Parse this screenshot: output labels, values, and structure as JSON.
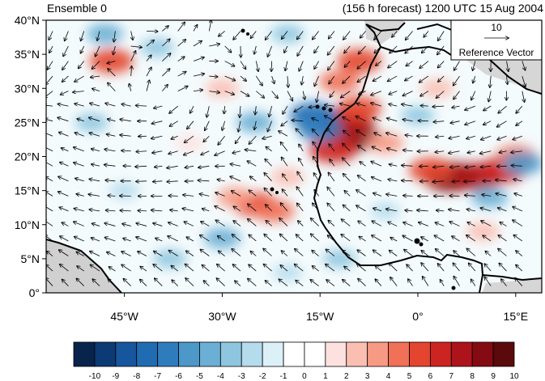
{
  "header": {
    "left_title": "Ensemble 0",
    "right_title": "(156 h forecast) 1200 UTC 15 Aug 2004"
  },
  "axes": {
    "y_ticks": [
      "0°",
      "5°N",
      "10°N",
      "15°N",
      "20°N",
      "25°N",
      "30°N",
      "35°N",
      "40°N"
    ],
    "x_ticks": [
      "45°W",
      "30°W",
      "15°W",
      "0°",
      "15°E"
    ],
    "y_range": [
      0,
      40
    ],
    "x_range": [
      -57,
      19
    ]
  },
  "reference_vector": {
    "value": "10",
    "label": "Reference Vector"
  },
  "colorbar": {
    "labels": [
      "-10",
      "-9",
      "-8",
      "-7",
      "-6",
      "-5",
      "-4",
      "-3",
      "-2",
      "-1",
      "0",
      "1",
      "2",
      "3",
      "4",
      "5",
      "6",
      "7",
      "8",
      "9",
      "10"
    ],
    "colors": [
      "#08234c",
      "#0c3a75",
      "#16569c",
      "#1f6cb2",
      "#2f7cbc",
      "#4b98c9",
      "#6cafd4",
      "#8fc6df",
      "#b5dcec",
      "#dcf0f8",
      "#ffffff",
      "#ffffff",
      "#fde1df",
      "#fbbfb2",
      "#f79a84",
      "#f07058",
      "#e3452f",
      "#cc2420",
      "#ad131a",
      "#850b12",
      "#5a0a0b"
    ]
  },
  "anomalies": [
    {
      "lon": -10,
      "lat": 23,
      "value": 9
    },
    {
      "lon": -11,
      "lat": 25,
      "value": 8
    },
    {
      "lon": -13,
      "lat": 21,
      "value": 7
    },
    {
      "lon": -9,
      "lat": 27,
      "value": 6
    },
    {
      "lon": 5,
      "lat": 17,
      "value": 9
    },
    {
      "lon": 9,
      "lat": 17,
      "value": 8
    },
    {
      "lon": 13,
      "lat": 18,
      "value": 7
    },
    {
      "lon": 2,
      "lat": 18,
      "value": 6
    },
    {
      "lon": 15,
      "lat": 20,
      "value": 5
    },
    {
      "lon": -25,
      "lat": 13,
      "value": 6
    },
    {
      "lon": -22,
      "lat": 12,
      "value": 5
    },
    {
      "lon": -28,
      "lat": 14,
      "value": 4
    },
    {
      "lon": -47,
      "lat": 34,
      "value": 6
    },
    {
      "lon": -9,
      "lat": 34,
      "value": 6
    },
    {
      "lon": -12,
      "lat": 31,
      "value": 5
    },
    {
      "lon": -5,
      "lat": 22,
      "value": 4
    },
    {
      "lon": 3,
      "lat": 30,
      "value": 3
    },
    {
      "lon": -30,
      "lat": 30,
      "value": 3
    },
    {
      "lon": 10,
      "lat": 9,
      "value": 3
    },
    {
      "lon": -35,
      "lat": 22,
      "value": 2
    },
    {
      "lon": -20,
      "lat": 17,
      "value": 3
    },
    {
      "lon": -16,
      "lat": 26,
      "value": -7
    },
    {
      "lon": -15,
      "lat": 24,
      "value": -6
    },
    {
      "lon": -48,
      "lat": 38,
      "value": -4
    },
    {
      "lon": -40,
      "lat": 36,
      "value": -3
    },
    {
      "lon": -25,
      "lat": 25,
      "value": -4
    },
    {
      "lon": -30,
      "lat": 8,
      "value": -4
    },
    {
      "lon": -38,
      "lat": 5,
      "value": -3
    },
    {
      "lon": -12,
      "lat": 5,
      "value": -3
    },
    {
      "lon": 0,
      "lat": 26,
      "value": -3
    },
    {
      "lon": -50,
      "lat": 25,
      "value": -3
    },
    {
      "lon": -20,
      "lat": 38,
      "value": -3
    },
    {
      "lon": 16,
      "lat": 19,
      "value": -5
    },
    {
      "lon": 11,
      "lat": 14,
      "value": -4
    },
    {
      "lon": -5,
      "lat": 12,
      "value": -2
    },
    {
      "lon": -45,
      "lat": 15,
      "value": -2
    },
    {
      "lon": -20,
      "lat": 3,
      "value": -2
    }
  ]
}
